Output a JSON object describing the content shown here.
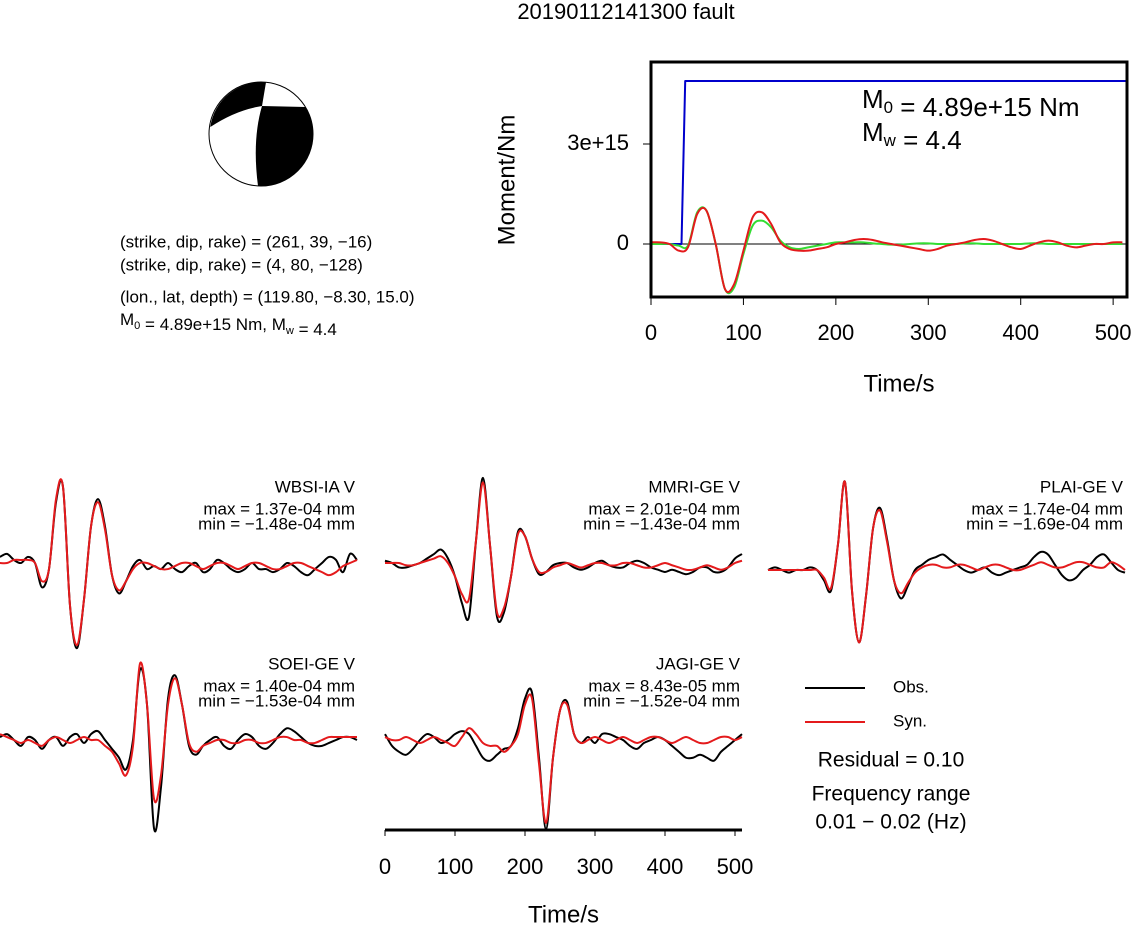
{
  "title": "20190112141300 fault",
  "mechanism": {
    "lines": [
      "(strike, dip, rake) = (261, 39, −16)",
      "(strike, dip, rake) = (4, 80, −128)",
      "(lon., lat, depth) = (119.80, −8.30, 15.0)"
    ],
    "summary": [
      {
        "text": "M"
      },
      {
        "sub": "0"
      },
      {
        "text": " = 4.89e+15 Nm, M"
      },
      {
        "sub": "w"
      },
      {
        "text": " = 4.4"
      }
    ]
  },
  "chart_data": [
    {
      "type": "line",
      "xlabel": "Time/s",
      "ylabel": "Moment/Nm",
      "xlim": [
        0,
        515
      ],
      "xticks": [
        0,
        100,
        200,
        300,
        400,
        500
      ],
      "ylim": [
        -1590000000000000.0,
        5460000000000000.0
      ],
      "yticks": [
        0,
        {
          "value": 3000000000000000.0,
          "label": "3e+15"
        }
      ],
      "annotations": [
        [
          {
            "text": "M"
          },
          {
            "sub": "0"
          },
          {
            "text": " = 4.89e+15 Nm"
          }
        ],
        [
          {
            "text": "M"
          },
          {
            "sub": "w"
          },
          {
            "text": " = 4.4"
          }
        ]
      ],
      "x": [
        0,
        10,
        20,
        30,
        40,
        50,
        60,
        70,
        80,
        90,
        100,
        110,
        120,
        130,
        140,
        150,
        160,
        170,
        180,
        190,
        200,
        210,
        220,
        230,
        240,
        250,
        260,
        270,
        280,
        290,
        300,
        310,
        320,
        330,
        340,
        350,
        360,
        370,
        380,
        390,
        400,
        410,
        420,
        430,
        440,
        450,
        460,
        470,
        480,
        490,
        500,
        510
      ],
      "series": [
        {
          "color": "#0000cc",
          "x": [
            0,
            33,
            37,
            515
          ],
          "values": [
            0,
            0,
            4890000000000000.0,
            4890000000000000.0
          ]
        },
        {
          "color": "#33dd33",
          "values": [
            0,
            0,
            0,
            -50000000000000.0,
            -50000000000000.0,
            950000000000000.0,
            1000000000000000.0,
            0,
            -1350000000000000.0,
            -1300000000000000.0,
            -300000000000000.0,
            550000000000000.0,
            700000000000000.0,
            500000000000000.0,
            100000000000000.0,
            -100000000000000.0,
            -150000000000000.0,
            -100000000000000.0,
            -50000000000000.0,
            0,
            50000000000000.0,
            50000000000000.0,
            50000000000000.0,
            50000000000000.0,
            20000000000000.0,
            0,
            -20000000000000.0,
            -20000000000000.0,
            0,
            20000000000000.0,
            20000000000000.0,
            0,
            0,
            0,
            20000000000000.0,
            20000000000000.0,
            0,
            0,
            0,
            0,
            0,
            20000000000000.0,
            20000000000000.0,
            0,
            0,
            0,
            0,
            0,
            0,
            0,
            0,
            0
          ]
        },
        {
          "color": "#e41a1c",
          "values": [
            50000000000000.0,
            50000000000000.0,
            0,
            -200000000000000.0,
            -100000000000000.0,
            900000000000000.0,
            1000000000000000.0,
            0,
            -1350000000000000.0,
            -1200000000000000.0,
            -200000000000000.0,
            800000000000000.0,
            950000000000000.0,
            600000000000000.0,
            50000000000000.0,
            -150000000000000.0,
            -200000000000000.0,
            -200000000000000.0,
            -150000000000000.0,
            -100000000000000.0,
            0,
            50000000000000.0,
            120000000000000.0,
            150000000000000.0,
            120000000000000.0,
            50000000000000.0,
            0,
            -50000000000000.0,
            -100000000000000.0,
            -150000000000000.0,
            -200000000000000.0,
            -150000000000000.0,
            -50000000000000.0,
            0,
            50000000000000.0,
            120000000000000.0,
            150000000000000.0,
            100000000000000.0,
            0,
            -100000000000000.0,
            -150000000000000.0,
            -50000000000000.0,
            50000000000000.0,
            100000000000000.0,
            50000000000000.0,
            -50000000000000.0,
            -100000000000000.0,
            -50000000000000.0,
            0,
            0,
            50000000000000.0,
            50000000000000.0
          ]
        }
      ]
    },
    {
      "type": "waveform",
      "xlabel": "Time/s",
      "xlim": [
        0,
        510
      ],
      "xticks": [
        0,
        100,
        200,
        300,
        400,
        500
      ],
      "x": [
        0,
        10,
        20,
        30,
        40,
        50,
        60,
        70,
        80,
        90,
        100,
        110,
        120,
        130,
        140,
        150,
        160,
        170,
        180,
        190,
        200,
        210,
        220,
        230,
        240,
        250,
        260,
        270,
        280,
        290,
        300,
        310,
        320,
        330,
        340,
        350,
        360,
        370,
        380,
        390,
        400,
        410,
        420,
        430,
        440,
        450,
        460,
        470,
        480,
        490,
        500,
        510
      ],
      "series": [
        {
          "name": "Obs.",
          "color": "#000000"
        },
        {
          "name": "Syn.",
          "color": "#e41a1c"
        }
      ],
      "residual": "Residual = 0.10",
      "frequency": [
        "Frequency range",
        "0.01 − 0.02 (Hz)"
      ],
      "stations": [
        {
          "name": "WBSI-IA V",
          "max": {
            "value": 0.000137,
            "label": "max = 1.37e-04 mm"
          },
          "min": {
            "value": -0.000148,
            "label": "min = −1.48e-04 mm"
          },
          "obs": [
            1e-05,
            1.5e-05,
            5e-06,
            0,
            1e-05,
            0,
            -4e-05,
            -1e-05,
            0.0001,
            0.000125,
            -7e-05,
            -0.00014,
            -6e-05,
            6e-05,
            0.000105,
            6e-05,
            -2e-05,
            -5e-05,
            -3e-05,
            -5e-06,
            5e-06,
            -1e-05,
            -5e-06,
            -1e-05,
            0,
            -1e-05,
            -1.5e-05,
            -5e-06,
            0,
            -1.5e-05,
            -1e-05,
            5e-06,
            0,
            -1e-05,
            -1.5e-05,
            -1e-05,
            0,
            -1e-05,
            -1e-05,
            -1.5e-05,
            -1e-05,
            0,
            -5e-06,
            -1.5e-05,
            -2e-05,
            -1e-05,
            0,
            1e-05,
            5e-06,
            -1.5e-05,
            1.5e-05,
            5e-06
          ],
          "syn": [
            0,
            0,
            5e-06,
            5e-06,
            5e-06,
            0,
            -3e-05,
            -1e-05,
            0.000105,
            0.000125,
            -7e-05,
            -0.000135,
            -6e-05,
            6e-05,
            0.0001,
            5.5e-05,
            -2e-05,
            -4.5e-05,
            -3e-05,
            -1e-05,
            0,
            0,
            -5e-06,
            -1e-05,
            -1e-05,
            -5e-06,
            0,
            0,
            -5e-06,
            -1e-05,
            -5e-06,
            0,
            0,
            -5e-06,
            -1e-05,
            -5e-06,
            0,
            0,
            -5e-06,
            -1e-05,
            -1e-05,
            -5e-06,
            0,
            0,
            -5e-06,
            -1e-05,
            -1.5e-05,
            -2e-05,
            -1.5e-05,
            -5e-06,
            0,
            5e-06
          ]
        },
        {
          "name": "MMRI-GE V",
          "max": {
            "value": 0.000201,
            "label": "max = 2.01e-04 mm"
          },
          "min": {
            "value": -0.000143,
            "label": "min = −1.43e-04 mm"
          },
          "obs": [
            5e-06,
            0,
            -1e-05,
            -1e-05,
            -5e-06,
            0,
            1e-05,
            2e-05,
            3e-05,
            1e-05,
            -3e-05,
            -9e-05,
            -0.00012,
            5e-05,
            0.00019,
            4e-05,
            -0.00012,
            -0.00011,
            -3e-05,
            7e-05,
            6e-05,
            1e-05,
            -2.5e-05,
            -2e-05,
            -5e-06,
            0,
            0,
            -1e-05,
            -1.5e-05,
            -1e-05,
            0,
            5e-06,
            -5e-06,
            -1e-05,
            -1e-05,
            0,
            5e-06,
            0,
            -1e-05,
            -1.5e-05,
            -2e-05,
            -1.5e-05,
            -2e-05,
            -2.5e-05,
            -2e-05,
            -1e-05,
            -1e-05,
            -2e-05,
            -2e-05,
            -1e-05,
            1e-05,
            2e-05
          ],
          "syn": [
            0,
            0,
            0,
            -5e-06,
            -5e-06,
            0,
            5e-06,
            1e-05,
            1.5e-05,
            0,
            -3e-05,
            -7e-05,
            -8e-05,
            5e-05,
            0.00018,
            4e-05,
            -0.00011,
            -0.0001,
            -3e-05,
            6.5e-05,
            6e-05,
            1e-05,
            -2e-05,
            -2e-05,
            -1e-05,
            -5e-06,
            0,
            -5e-06,
            -1e-05,
            -5e-06,
            0,
            0,
            -5e-06,
            -5e-06,
            0,
            0,
            -5e-06,
            -1e-05,
            -1e-05,
            -5e-06,
            0,
            -5e-06,
            -1e-05,
            -1.5e-05,
            -1.5e-05,
            -1e-05,
            -5e-06,
            -1e-05,
            -1.5e-05,
            -1e-05,
            0,
            5e-06
          ]
        },
        {
          "name": "PLAI-GE V",
          "max": {
            "value": 0.000174,
            "label": "max = 1.74e-04 mm"
          },
          "min": {
            "value": -0.000169,
            "label": "min = −1.69e-04 mm"
          },
          "obs": [
            0,
            5e-06,
            0,
            -5e-06,
            0,
            0,
            5e-06,
            0,
            -2e-05,
            -4e-05,
            5e-05,
            0.00017,
            -4e-05,
            -0.00014,
            -5e-05,
            8e-05,
            0.00012,
            6e-05,
            -2e-05,
            -5.5e-05,
            -3e-05,
            0,
            1e-05,
            2e-05,
            2.5e-05,
            3e-05,
            2e-05,
            1e-05,
            0,
            -5e-06,
            0,
            5e-06,
            -5e-06,
            -1e-05,
            -5e-06,
            0,
            5e-06,
            1e-05,
            2.5e-05,
            3.5e-05,
            3e-05,
            1e-05,
            -1e-05,
            -2e-05,
            -1.5e-05,
            0,
            1e-05,
            2.5e-05,
            3e-05,
            1.5e-05,
            0,
            -5e-06
          ],
          "syn": [
            0,
            0,
            0,
            0,
            0,
            0,
            0,
            0,
            -1.5e-05,
            -3.5e-05,
            5e-05,
            0.00017,
            -4e-05,
            -0.00014,
            -5e-05,
            8e-05,
            0.000115,
            5.5e-05,
            -2e-05,
            -4.5e-05,
            -2.5e-05,
            -5e-06,
            5e-06,
            1e-05,
            1e-05,
            5e-06,
            5e-06,
            1e-05,
            1e-05,
            5e-06,
            0,
            5e-06,
            1e-05,
            1e-05,
            5e-06,
            0,
            0,
            5e-06,
            1e-05,
            1.5e-05,
            1e-05,
            5e-06,
            5e-06,
            1e-05,
            1.5e-05,
            1.5e-05,
            1e-05,
            5e-06,
            5e-06,
            1.5e-05,
            1e-05,
            0
          ]
        },
        {
          "name": "SOEI-GE V",
          "max": {
            "value": 0.00014,
            "label": "max = 1.40e-04 mm"
          },
          "min": {
            "value": -0.000153,
            "label": "min = −1.53e-04 mm"
          },
          "obs": [
            5e-06,
            1e-05,
            0,
            -1e-05,
            5e-06,
            0,
            -1.5e-05,
            0,
            5e-06,
            -1e-05,
            5e-06,
            1e-05,
            -5e-06,
            1e-05,
            1.5e-05,
            0,
            -1.5e-05,
            -3e-05,
            -5e-05,
            0,
            0.00012,
            6e-05,
            -0.00015,
            -8e-05,
            7e-05,
            0.00011,
            6e-05,
            -1e-05,
            -2.5e-05,
            -1e-05,
            0,
            5e-06,
            -1e-05,
            -1.5e-05,
            0,
            1e-05,
            5e-06,
            -1e-05,
            -1.5e-05,
            -5e-06,
            1e-05,
            2e-05,
            1.5e-05,
            5e-06,
            -5e-06,
            -1e-05,
            -1e-05,
            -5e-06,
            0,
            5e-06,
            5e-06,
            0
          ],
          "syn": [
            1e-05,
            5e-06,
            0,
            -5e-06,
            0,
            -5e-06,
            -1e-05,
            0,
            5e-06,
            0,
            -5e-06,
            0,
            5e-06,
            0,
            0,
            -1e-05,
            -2e-05,
            -4e-05,
            -6e-05,
            -1e-05,
            0.00013,
            6e-05,
            -0.0001,
            -6e-05,
            6e-05,
            0.000105,
            6e-05,
            -5e-06,
            -2e-05,
            -1e-05,
            -5e-06,
            0,
            0,
            -5e-06,
            -5e-06,
            0,
            0,
            -5e-06,
            -5e-06,
            0,
            5e-06,
            5e-06,
            0,
            0,
            -5e-06,
            -5e-06,
            0,
            5e-06,
            5e-06,
            5e-06,
            5e-06,
            5e-06
          ]
        },
        {
          "name": "JAGI-GE V",
          "max": {
            "value": 8.43e-05,
            "label": "max = 8.43e-05 mm"
          },
          "min": {
            "value": -0.000152,
            "label": "min = −1.52e-04 mm"
          },
          "obs": [
            1e-05,
            -1e-05,
            -2e-05,
            -2.5e-05,
            -1.5e-05,
            0,
            1e-05,
            5e-06,
            -5e-06,
            0,
            1e-05,
            1.5e-05,
            1e-05,
            -1e-05,
            -3e-05,
            -3.5e-05,
            -2.5e-05,
            -1.5e-05,
            -1e-05,
            2e-05,
            7e-05,
            8e-05,
            -3e-05,
            -0.00015,
            -3e-05,
            5e-05,
            6.5e-05,
            1e-05,
            -5e-06,
            5e-06,
            -5e-06,
            1e-05,
            1e-05,
            5e-06,
            0,
            -1e-05,
            -1.5e-05,
            -5e-06,
            0,
            5e-06,
            0,
            -1e-05,
            -2e-05,
            -3e-05,
            -3e-05,
            -2.5e-05,
            -3e-05,
            -3.5e-05,
            -2e-05,
            -1e-05,
            0,
            1e-05
          ],
          "syn": [
            5e-06,
            0,
            0,
            5e-06,
            0,
            -5e-06,
            0,
            5e-06,
            0,
            -5e-06,
            -1e-05,
            5e-06,
            2e-05,
            1e-05,
            -5e-06,
            -1e-05,
            -1e-05,
            -2e-05,
            -1e-05,
            1e-05,
            6e-05,
            7e-05,
            -4e-05,
            -0.00014,
            -3e-05,
            5e-05,
            6e-05,
            1e-05,
            -5e-06,
            0,
            5e-06,
            0,
            -5e-06,
            0,
            5e-06,
            0,
            -5e-06,
            0,
            5e-06,
            5e-06,
            0,
            -5e-06,
            0,
            5e-06,
            0,
            -5e-06,
            -5e-06,
            0,
            5e-06,
            5e-06,
            0,
            5e-06
          ]
        }
      ]
    }
  ]
}
